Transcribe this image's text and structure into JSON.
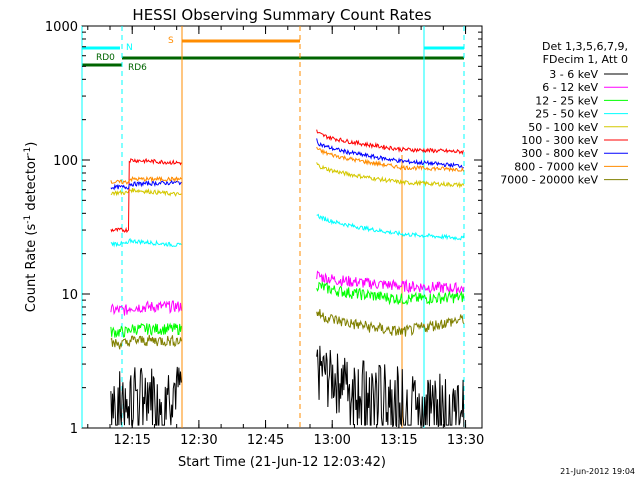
{
  "chart_data": {
    "type": "line",
    "title": "HESSI Observing Summary Count Rates",
    "xlabel": "Start Time (21-Jun-12 12:03:42)",
    "ylabel_main": "Count Rate (s",
    "ylabel_sup1": "-1",
    "ylabel_mid": " detector",
    "ylabel_sup2": "-1",
    "ylabel_end": ")",
    "y_scale": "log",
    "ylim": [
      1,
      1000
    ],
    "xlim_minutes": [
      0,
      90
    ],
    "x_ticks": [
      {
        "m": 11.3,
        "label": "12:15"
      },
      {
        "m": 26.3,
        "label": "12:30"
      },
      {
        "m": 41.3,
        "label": "12:45"
      },
      {
        "m": 56.3,
        "label": "13:00"
      },
      {
        "m": 71.3,
        "label": "13:15"
      },
      {
        "m": 86.3,
        "label": "13:30"
      }
    ],
    "y_ticks": [
      {
        "v": 1,
        "label": "1"
      },
      {
        "v": 10,
        "label": "10"
      },
      {
        "v": 100,
        "label": "100"
      },
      {
        "v": 1000,
        "label": "1000"
      }
    ],
    "legend_header": [
      "Det 1,3,5,6,7,9,",
      "FDecim 1, Att 0"
    ],
    "series": [
      {
        "name": "3 - 6 keV",
        "color": "#000000",
        "seg1": [
          2.0,
          2.2,
          2.1
        ],
        "seg2": [
          3.0,
          1.9,
          1.6
        ]
      },
      {
        "name": "6 - 12 keV",
        "color": "#ff00ff",
        "seg1": [
          8.0,
          8.2,
          8.1
        ],
        "seg2": [
          14,
          11.5,
          11
        ]
      },
      {
        "name": "12 - 25 keV",
        "color": "#00ff00",
        "seg1": [
          5.5,
          5.6,
          5.5
        ],
        "seg2": [
          12,
          9.2,
          9.5
        ]
      },
      {
        "name": "25 - 50 keV",
        "color": "#00ffff",
        "seg1": [
          25,
          23,
          23
        ],
        "seg2": [
          40,
          28,
          26
        ]
      },
      {
        "name": "50 - 100 keV",
        "color": "#d4c800",
        "seg1": [
          60,
          57,
          55
        ],
        "seg2": [
          95,
          68,
          65
        ]
      },
      {
        "name": "100 - 300 keV",
        "color": "#ff0000",
        "seg1": [
          100,
          95,
          95
        ],
        "seg2": [
          165,
          120,
          115
        ]
      },
      {
        "name": "300 - 800 keV",
        "color": "#0000ff",
        "seg1": [
          66,
          68,
          68
        ],
        "seg2": [
          140,
          98,
          90
        ]
      },
      {
        "name": "800 - 7000 keV",
        "color": "#ff8c00",
        "seg1": [
          72,
          74,
          72
        ],
        "seg2": [
          125,
          88,
          85
        ]
      },
      {
        "name": "7000 - 20000 keV",
        "color": "#808000",
        "seg1": [
          4.5,
          4.6,
          4.5
        ],
        "seg2": [
          7.5,
          5.2,
          6.5
        ]
      }
    ],
    "bottom_stamp": "21-Jun-2012 19:04"
  }
}
